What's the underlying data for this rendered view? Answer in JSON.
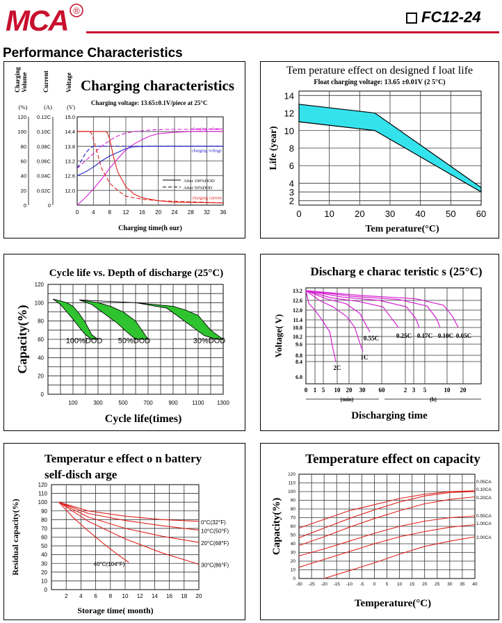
{
  "header": {
    "logo_text": "MCA",
    "registered_mark": "®",
    "model_number": "FC12-24",
    "section_title": "Performance Characteristics"
  },
  "colors": {
    "brand_red": "#c8102e",
    "magenta": "#d51fd1",
    "red": "#e0201a",
    "blue": "#2222cc",
    "cyan": "#34e2ec",
    "green": "#2fc42f"
  },
  "chart_data": [
    {
      "id": "charging",
      "type": "line",
      "title": "Charging characteristics",
      "subtitle": "Charging voltage:     13.65±0.1V/piece   at 25°C",
      "xlabel": "Charging time(h  our)",
      "axis_headers": [
        {
          "label": "Charging\nVolume",
          "unit": "(%)"
        },
        {
          "label": "Current",
          "unit": "(A)"
        },
        {
          "label": "Voltage",
          "unit": "(V)"
        }
      ],
      "xticks": [
        "0",
        "4",
        "8",
        "12",
        "16",
        "20",
        "24",
        "28",
        "32",
        "36"
      ],
      "volume_ticks": [
        "0",
        "20",
        "40",
        "60",
        "80",
        "100",
        "120"
      ],
      "current_ticks": [
        "0",
        "0.02C",
        "0.04C",
        "0.06C",
        "0.08C",
        "0.10C",
        "0.12C"
      ],
      "voltage_ticks": [
        "12.0",
        "12.6",
        "13.2",
        "13.8",
        "14.4",
        "15.0"
      ],
      "xlim": [
        0,
        36
      ],
      "volume_lim": [
        0,
        120
      ],
      "series_labels": [
        {
          "text": "charging volume",
          "color": "#d51fd1"
        },
        {
          "text": "charging voltage",
          "color": "#2222cc"
        },
        {
          "text": "charging current",
          "color": "#e0201a"
        }
      ],
      "legend": [
        {
          "text": "After 100%DOD",
          "style": "solid"
        },
        {
          "text": "After 50%DOD",
          "style": "dashed"
        }
      ],
      "series": [
        {
          "name": "charging volume",
          "dod": "100%",
          "x": [
            0,
            2,
            4,
            6,
            8,
            10,
            12,
            14,
            16,
            18,
            20,
            24,
            28,
            32,
            36
          ],
          "y": [
            0,
            10,
            22,
            35,
            50,
            63,
            75,
            83,
            89,
            94,
            97,
            99,
            100,
            100,
            100
          ]
        },
        {
          "name": "charging volume",
          "dod": "50%",
          "x": [
            0,
            2,
            4,
            6,
            8,
            10,
            12,
            14,
            18,
            22,
            36
          ],
          "y": [
            50,
            60,
            70,
            80,
            88,
            94,
            98,
            100,
            102,
            103,
            103
          ]
        },
        {
          "name": "charging voltage",
          "dod": "100%",
          "x": [
            0,
            2,
            4,
            6,
            8,
            10,
            12,
            14,
            18,
            24,
            36
          ],
          "y": [
            12.6,
            12.75,
            12.95,
            13.2,
            13.4,
            13.55,
            13.7,
            13.78,
            13.8,
            13.8,
            13.8
          ]
        },
        {
          "name": "charging voltage",
          "dod": "50%",
          "x": [
            0,
            1,
            2,
            3,
            4,
            6,
            8,
            12,
            36
          ],
          "y": [
            12.9,
            13.2,
            13.5,
            13.7,
            13.8,
            13.8,
            13.8,
            13.8,
            13.8
          ]
        },
        {
          "name": "charging current",
          "dod": "100%",
          "x": [
            0,
            6,
            7,
            7.5,
            8,
            9,
            10,
            12,
            14,
            16,
            20,
            24,
            36
          ],
          "y": [
            0.1,
            0.1,
            0.1,
            0.098,
            0.09,
            0.065,
            0.045,
            0.025,
            0.015,
            0.01,
            0.006,
            0.004,
            0.003
          ]
        },
        {
          "name": "charging current",
          "dod": "50%",
          "x": [
            0,
            3,
            3.5,
            4,
            5,
            6,
            8,
            10,
            12,
            16,
            20,
            36
          ],
          "y": [
            0.1,
            0.1,
            0.098,
            0.09,
            0.07,
            0.05,
            0.03,
            0.02,
            0.012,
            0.008,
            0.006,
            0.003
          ]
        }
      ]
    },
    {
      "id": "float-life",
      "type": "area",
      "title": "Tem perature effect on designed f loat life",
      "subtitle": "Float charging voltage: 13.65 ±0.01V (2 5°C)",
      "xlabel": "Tem perature(°C)",
      "ylabel": "Life (year)",
      "xticks": [
        0,
        10,
        20,
        30,
        40,
        50,
        60
      ],
      "yticks": [
        2,
        3,
        4,
        6,
        8,
        10,
        12,
        14
      ],
      "xlim": [
        0,
        60
      ],
      "ylim": [
        1.5,
        14.5
      ],
      "upper": {
        "x": [
          0,
          25,
          60
        ],
        "y": [
          13,
          12,
          3.5
        ]
      },
      "lower": {
        "x": [
          0,
          25,
          60
        ],
        "y": [
          11,
          10,
          3
        ]
      }
    },
    {
      "id": "cycle-life",
      "type": "area",
      "title": "Cycle life vs. Depth of discharge (25°C)",
      "xlabel": "Cycle life(times)",
      "ylabel": "Capacity(%)",
      "xticks": [
        100,
        300,
        500,
        700,
        900,
        1100,
        1300
      ],
      "yticks": [
        0,
        20,
        40,
        60,
        80,
        100,
        120
      ],
      "xlim": [
        -100,
        1300
      ],
      "ylim": [
        0,
        120
      ],
      "bands": [
        {
          "label": "100%DOD",
          "upper": {
            "x": [
              -60,
              50,
              100,
              150,
              200,
              250,
              300
            ],
            "y": [
              104,
              100,
              96,
              88,
              78,
              65,
              60
            ]
          },
          "lower": {
            "x": [
              -60,
              0,
              50,
              100,
              150,
              200,
              250
            ],
            "y": [
              104,
              98,
              90,
              82,
              73,
              65,
              60
            ]
          }
        },
        {
          "label": "50%DOD",
          "upper": {
            "x": [
              150,
              300,
              400,
              500,
              600,
              650,
              700
            ],
            "y": [
              103,
              100,
              96,
              90,
              80,
              70,
              60
            ]
          },
          "lower": {
            "x": [
              150,
              250,
              350,
              450,
              530,
              600
            ],
            "y": [
              103,
              98,
              88,
              78,
              68,
              60
            ]
          }
        },
        {
          "label": "30%DOD",
          "upper": {
            "x": [
              150,
              600,
              900,
              1000,
              1100,
              1150,
              1200,
              1300
            ],
            "y": [
              103,
              100,
              96,
              92,
              86,
              78,
              70,
              60
            ]
          },
          "lower": {
            "x": [
              150,
              600,
              850,
              950,
              1050,
              1150,
              1250
            ],
            "y": [
              103,
              100,
              94,
              84,
              74,
              64,
              60
            ]
          }
        }
      ]
    },
    {
      "id": "discharge",
      "type": "line",
      "title": "Discharg e charac teristic s (25°C)",
      "xlabel": "Discharging time",
      "ylabel": "Voltage( V)",
      "yticks": [
        "6.0",
        "8.4",
        "8.8",
        "9.6",
        "10.2",
        "10.8",
        "11.4",
        "12.0",
        "12.6",
        "13.2"
      ],
      "ytick_values": [
        6.0,
        8.4,
        8.8,
        9.6,
        10.2,
        10.8,
        11.4,
        12.0,
        12.6,
        13.2
      ],
      "xticks": [
        "0",
        "1",
        "5",
        "10",
        "20",
        "30",
        "60",
        "2",
        "3",
        "5",
        "10",
        "20"
      ],
      "xunits": [
        "(min)",
        "(h)"
      ],
      "series": [
        {
          "name": "2C",
          "x": [
            0,
            1,
            3,
            5,
            8,
            9,
            10
          ],
          "y": [
            13.2,
            12.4,
            12.0,
            11.5,
            10.5,
            9.3,
            8.4
          ]
        },
        {
          "name": "1C",
          "x": [
            0,
            5,
            10,
            15,
            18,
            20,
            21
          ],
          "y": [
            13.2,
            12.6,
            12.2,
            11.6,
            10.8,
            9.6,
            9.1
          ]
        },
        {
          "name": "0.55C",
          "x": [
            0,
            10,
            20,
            27,
            30,
            32
          ],
          "y": [
            13.2,
            12.7,
            12.4,
            11.8,
            11.0,
            10.5
          ]
        },
        {
          "name": "0.25C",
          "x": [
            0,
            15,
            30,
            45,
            50,
            54
          ],
          "y": [
            13.2,
            12.75,
            12.55,
            12.2,
            11.5,
            10.8
          ]
        },
        {
          "name": "0.17C",
          "x": [
            0,
            20,
            40,
            55,
            60,
            62
          ],
          "y": [
            13.2,
            12.8,
            12.6,
            12.2,
            11.5,
            10.8
          ]
        },
        {
          "name": "0.10C",
          "x": [
            0,
            25,
            50,
            65,
            70,
            72
          ],
          "y": [
            13.2,
            12.85,
            12.65,
            12.25,
            11.5,
            10.8
          ]
        },
        {
          "name": "0.05C",
          "x": [
            0,
            30,
            60,
            75,
            80,
            83
          ],
          "y": [
            13.2,
            12.9,
            12.7,
            12.3,
            11.6,
            10.8
          ]
        }
      ]
    },
    {
      "id": "self-discharge",
      "type": "line",
      "title": "Temperatur e effect o n battery",
      "title_line2": "self-disch arge",
      "xlabel": "Storage time( month)",
      "ylabel": "Residual capacity(%)",
      "xticks": [
        2,
        4,
        6,
        8,
        10,
        12,
        14,
        16,
        18,
        20
      ],
      "yticks": [
        0,
        10,
        20,
        30,
        40,
        50,
        60,
        70,
        80,
        90,
        100,
        110,
        120
      ],
      "xlim": [
        0,
        20
      ],
      "ylim": [
        0,
        120
      ],
      "series": [
        {
          "name": "0°C(32°F)",
          "x": [
            1,
            5,
            10,
            15,
            20
          ],
          "y": [
            100,
            90,
            84,
            80,
            78
          ]
        },
        {
          "name": "10°C(50°F)",
          "x": [
            1,
            5,
            10,
            15,
            20
          ],
          "y": [
            100,
            87,
            79,
            73,
            68
          ]
        },
        {
          "name": "20°C(68°F)",
          "x": [
            1,
            5,
            10,
            15,
            20
          ],
          "y": [
            100,
            83,
            70,
            61,
            54
          ]
        },
        {
          "name": "30°C(86°F)",
          "x": [
            1,
            5,
            10,
            15,
            20
          ],
          "y": [
            100,
            78,
            58,
            42,
            29
          ]
        },
        {
          "name": "40°C(104°F)",
          "x": [
            1,
            3,
            5,
            7,
            9,
            10.5
          ],
          "y": [
            100,
            82,
            67,
            53,
            40,
            31
          ]
        }
      ]
    },
    {
      "id": "temp-capacity",
      "type": "line",
      "title": "Temperature effect on capacity",
      "xlabel": "Temperature(°C)",
      "ylabel": "Capacity(%)",
      "xticks": [
        -30,
        -25,
        -20,
        -15,
        -10,
        -5,
        0,
        5,
        10,
        15,
        20,
        25,
        30,
        35,
        40
      ],
      "yticks": [
        0,
        10,
        20,
        30,
        40,
        50,
        60,
        70,
        80,
        90,
        100,
        110,
        120
      ],
      "xlim": [
        -30,
        40
      ],
      "ylim": [
        0,
        120
      ],
      "series": [
        {
          "name": "0.05CA",
          "x": [
            -30,
            -20,
            -10,
            0,
            10,
            20,
            30,
            40
          ],
          "y": [
            58,
            68,
            78,
            85,
            92,
            97,
            100,
            101
          ]
        },
        {
          "name": "0.10CA",
          "x": [
            -30,
            -20,
            -10,
            0,
            10,
            20,
            30,
            40
          ],
          "y": [
            47,
            58,
            69,
            79,
            88,
            95,
            99,
            100
          ]
        },
        {
          "name": "0.20CA",
          "x": [
            -30,
            -20,
            -10,
            0,
            10,
            20,
            30,
            40
          ],
          "y": [
            38,
            48,
            59,
            69,
            78,
            86,
            91,
            94
          ]
        },
        {
          "name": "0.55CA",
          "x": [
            -30,
            -20,
            -10,
            0,
            10,
            20,
            30,
            40
          ],
          "y": [
            26,
            34,
            43,
            52,
            60,
            66,
            70,
            72
          ]
        },
        {
          "name": "1.00CA",
          "x": [
            -30,
            -20,
            -10,
            0,
            10,
            20,
            30,
            40
          ],
          "y": [
            13,
            22,
            31,
            40,
            48,
            54,
            59,
            62
          ]
        },
        {
          "name": "2.00CA",
          "x": [
            -20,
            -10,
            0,
            10,
            20,
            30,
            40
          ],
          "y": [
            0,
            9,
            18,
            28,
            37,
            43,
            48
          ]
        }
      ]
    }
  ]
}
